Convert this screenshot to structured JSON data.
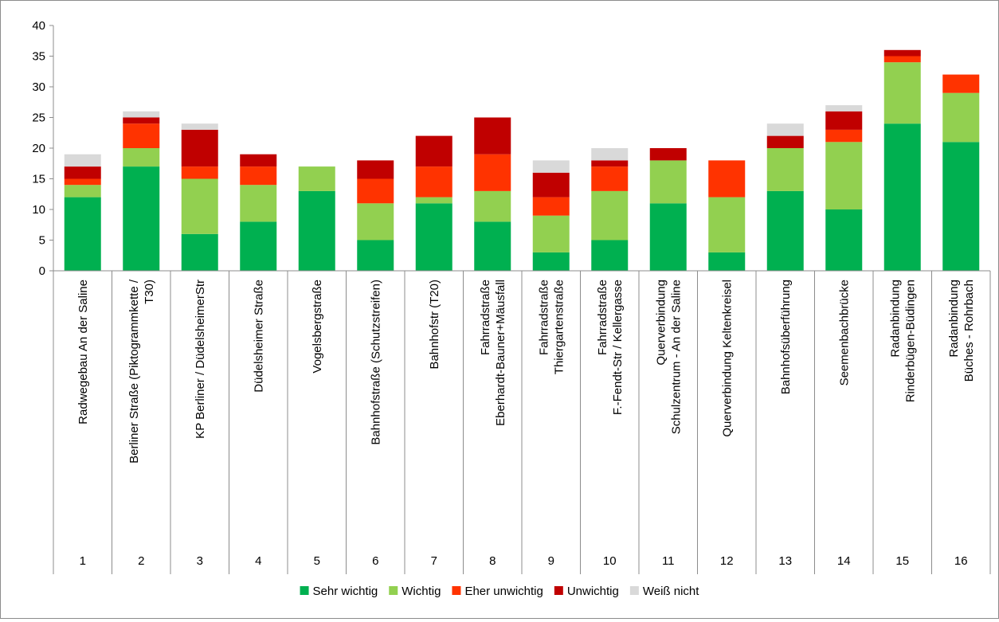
{
  "chart_data": {
    "type": "bar",
    "stacked": true,
    "ylim": [
      0,
      40
    ],
    "yticks": [
      0,
      5,
      10,
      15,
      20,
      25,
      30,
      35,
      40
    ],
    "grid": false,
    "legend_position": "bottom",
    "categories": [
      {
        "num": "1",
        "lines": [
          "Radwegebau An der Saline"
        ]
      },
      {
        "num": "2",
        "lines": [
          "Berliner Straße (Piktogrammkette /",
          "T30)"
        ]
      },
      {
        "num": "3",
        "lines": [
          "KP Berliner / DüdelsheimerStr"
        ]
      },
      {
        "num": "4",
        "lines": [
          "Düdelsheimer Straße"
        ]
      },
      {
        "num": "5",
        "lines": [
          "Vogelsbergstraße"
        ]
      },
      {
        "num": "6",
        "lines": [
          "Bahnhofstraße (Schutzstreifen)"
        ]
      },
      {
        "num": "7",
        "lines": [
          "Bahnhofstr (T20)"
        ]
      },
      {
        "num": "8",
        "lines": [
          "Fahrradstraße",
          "Eberhardt-Bauner+Mäusfall"
        ]
      },
      {
        "num": "9",
        "lines": [
          "Fahrradstraße",
          "Thiergartenstraße"
        ]
      },
      {
        "num": "10",
        "lines": [
          "Fahrradstraße",
          "F.-Fendt-Str / Kellergasse"
        ]
      },
      {
        "num": "11",
        "lines": [
          "Querverbindung",
          "Schulzentrum - An der Saline"
        ]
      },
      {
        "num": "12",
        "lines": [
          "Querverbindung Keltenkreisel"
        ]
      },
      {
        "num": "13",
        "lines": [
          "Bahnhofsüberführung"
        ]
      },
      {
        "num": "14",
        "lines": [
          "Seemenbachbrücke"
        ]
      },
      {
        "num": "15",
        "lines": [
          "Radanbindung",
          "Rinderbügen-Büdingen"
        ]
      },
      {
        "num": "16",
        "lines": [
          "Radanbindung",
          "Büches - Rohrbach"
        ]
      }
    ],
    "series": [
      {
        "name": "Sehr wichtig",
        "color": "#00b050",
        "values": [
          12,
          17,
          6,
          8,
          13,
          5,
          11,
          8,
          3,
          5,
          11,
          3,
          13,
          10,
          24,
          21
        ]
      },
      {
        "name": "Wichtig",
        "color": "#92d050",
        "values": [
          2,
          3,
          9,
          6,
          4,
          6,
          1,
          5,
          6,
          8,
          7,
          9,
          7,
          11,
          10,
          8
        ]
      },
      {
        "name": "Eher unwichtig",
        "color": "#ff3300",
        "values": [
          1,
          4,
          2,
          3,
          0,
          4,
          5,
          6,
          3,
          4,
          0,
          6,
          0,
          2,
          1,
          3
        ]
      },
      {
        "name": "Unwichtig",
        "color": "#c00000",
        "values": [
          2,
          1,
          6,
          2,
          0,
          3,
          5,
          6,
          4,
          1,
          2,
          0,
          2,
          3,
          1,
          0
        ]
      },
      {
        "name": "Weiß nicht",
        "color": "#d9d9d9",
        "values": [
          2,
          1,
          1,
          0,
          0,
          0,
          0,
          0,
          2,
          2,
          0,
          0,
          2,
          1,
          0,
          0
        ]
      }
    ]
  }
}
